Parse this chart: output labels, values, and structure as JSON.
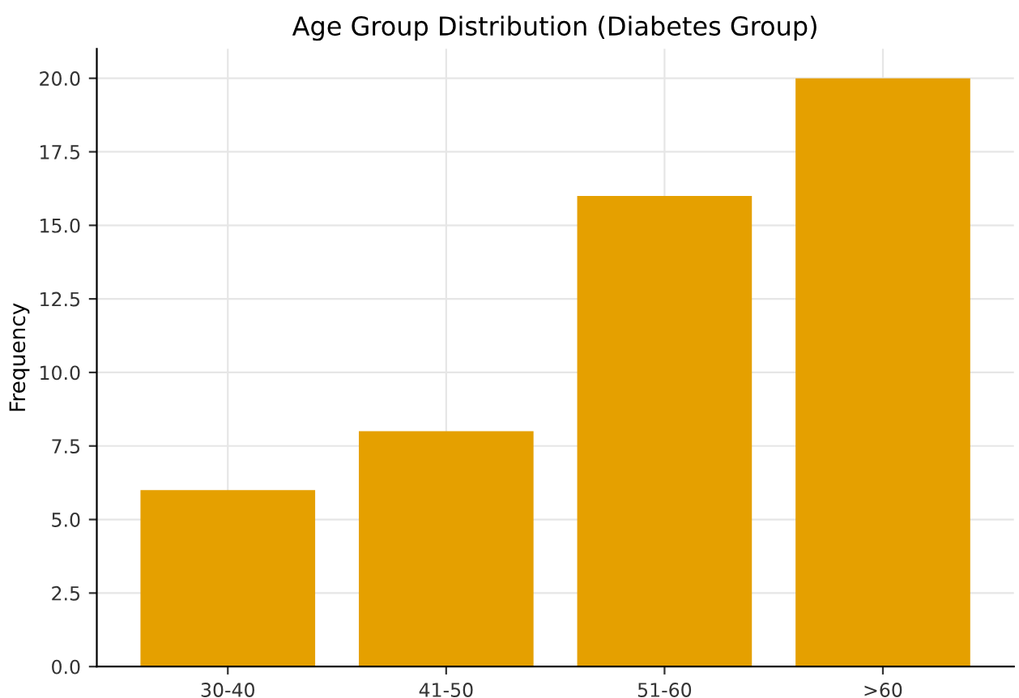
{
  "chart_data": {
    "type": "bar",
    "title": "Age Group Distribution (Diabetes Group)",
    "ylabel": "Frequency",
    "categories": [
      "30-40",
      "41-50",
      "51-60",
      ">60"
    ],
    "values": [
      6,
      8,
      16,
      20
    ],
    "color": "#e5a000",
    "ylim": [
      0,
      21
    ],
    "yticks": [
      {
        "value": 0,
        "label": "0.0"
      },
      {
        "value": 2.5,
        "label": "2.5"
      },
      {
        "value": 5,
        "label": "5.0"
      },
      {
        "value": 7.5,
        "label": "7.5"
      },
      {
        "value": 10,
        "label": "10.0"
      },
      {
        "value": 12.5,
        "label": "12.5"
      },
      {
        "value": 15,
        "label": "15.0"
      },
      {
        "value": 17.5,
        "label": "17.5"
      },
      {
        "value": 20,
        "label": "20.0"
      }
    ],
    "grid": true
  }
}
